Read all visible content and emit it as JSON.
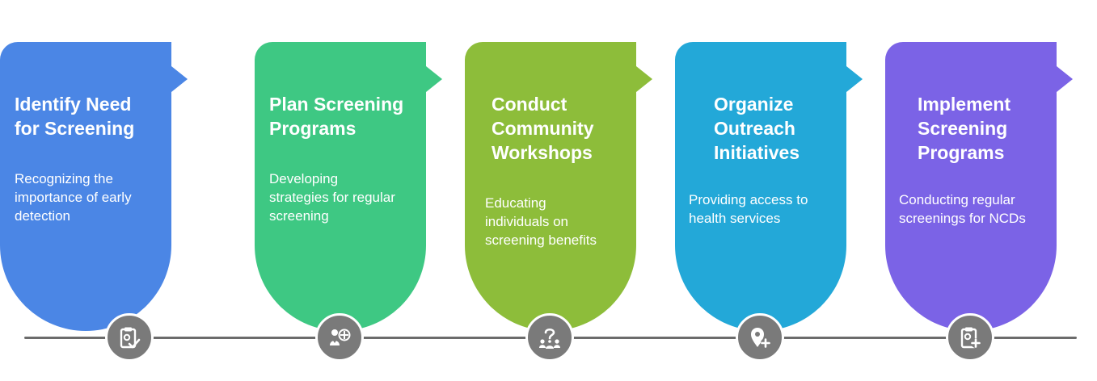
{
  "steps": [
    {
      "title": "Identify Need\nfor Screening",
      "description": "Recognizing the\nimportance of early\ndetection",
      "color": "#4b86e5",
      "icon": "clipboard-check-icon"
    },
    {
      "title": "Plan Screening\nPrograms",
      "description": "Developing\nstrategies for regular\nscreening",
      "color": "#3ec883",
      "icon": "strategy-planning-icon"
    },
    {
      "title": "Conduct\nCommunity\nWorkshops",
      "description": "Educating\nindividuals on\nscreening benefits",
      "color": "#8dbd3a",
      "icon": "community-question-icon"
    },
    {
      "title": "Organize\nOutreach\nInitiatives",
      "description": "Providing access to\nhealth services",
      "color": "#23a8d8",
      "icon": "location-plus-icon"
    },
    {
      "title": "Implement\nScreening\nPrograms",
      "description": "Conducting regular\nscreenings for NCDs",
      "color": "#7b63e6",
      "icon": "clipboard-plus-icon"
    }
  ],
  "marker_color": "#7a7a7a",
  "line_color": "#6b6b6b"
}
